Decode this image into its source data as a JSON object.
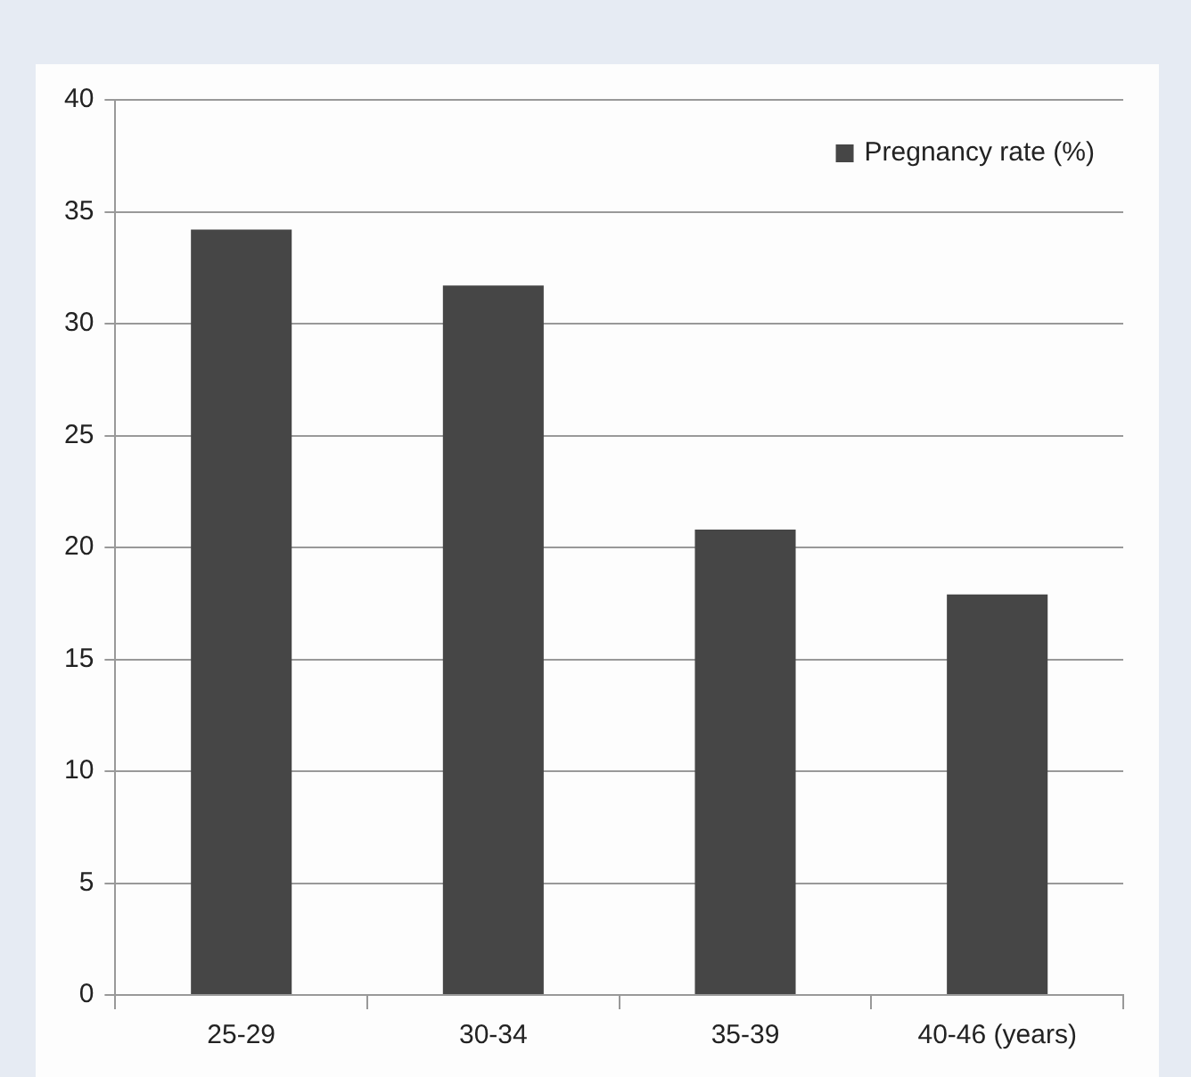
{
  "chart_data": {
    "type": "bar",
    "categories": [
      "25-29",
      "30-34",
      "35-39",
      "40-46 (years)"
    ],
    "series": [
      {
        "name": "Pregnancy rate (%)",
        "color": "#464646",
        "values": [
          34.2,
          31.7,
          20.8,
          17.9
        ]
      }
    ],
    "ylim": [
      0,
      40
    ],
    "yticks": [
      0,
      5,
      10,
      15,
      20,
      25,
      30,
      35,
      40
    ],
    "grid": "y",
    "legend": "top right"
  }
}
